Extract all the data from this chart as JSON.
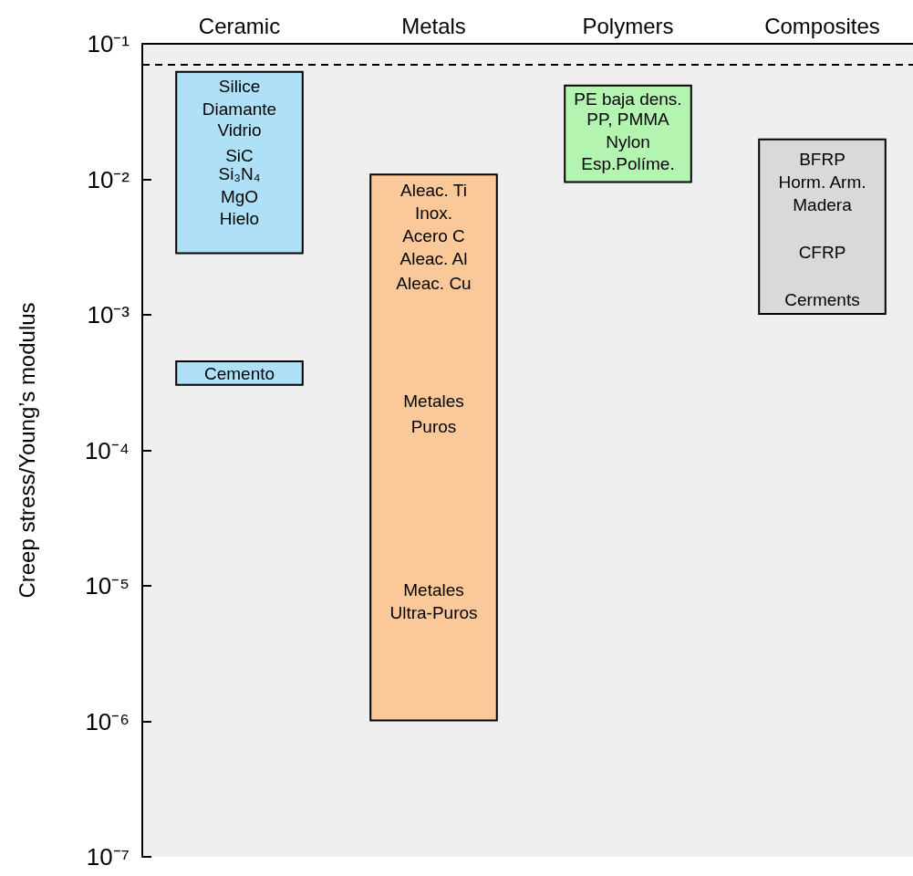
{
  "chart_data": {
    "type": "bar",
    "ylabel": "Creep stress/Young’s modulus",
    "categories": [
      "Ceramic",
      "Metals",
      "Polymers",
      "Composites"
    ],
    "log": "y",
    "ylim": [
      1e-07,
      0.1
    ],
    "yticks": [
      {
        "value": 1e-07,
        "label": "10⁻⁷"
      },
      {
        "value": 1e-06,
        "label": "10⁻⁶"
      },
      {
        "value": 1e-05,
        "label": "10⁻⁵"
      },
      {
        "value": 0.0001,
        "label": "10⁻⁴"
      },
      {
        "value": 0.001,
        "label": "10⁻³"
      },
      {
        "value": 0.01,
        "label": "10⁻²"
      },
      {
        "value": 0.1,
        "label": "10⁻¹"
      }
    ],
    "series": [
      {
        "colors": [
          "#aee0f7",
          "#fbc89a",
          "#b3f5b0",
          "#d9d9d9"
        ],
        "base": [
          0.0028,
          1e-06,
          0.0094,
          0.001
        ],
        "values": [
          0.0602,
          0.010999,
          0.0406,
          0.019
        ]
      },
      {
        "color": "#aee0f7",
        "base": [
          0.0003,
          null,
          null,
          null
        ],
        "values": [
          0.00016,
          null,
          null,
          null
        ]
      }
    ],
    "ref_lines": [
      {
        "axis": "y",
        "value": 0.07,
        "color": "#000000",
        "line_style": "dashed"
      }
    ],
    "annotations": [
      "Silice",
      "Diamante",
      "Vidrio",
      "SiC",
      "Si₃N₄",
      "MgO",
      "Hielo",
      "Cemento",
      "Aleac. Ti",
      "Inox.",
      "Acero C",
      "Aleac. Al",
      "Aleac. Cu",
      "Metales",
      "Puros",
      "Metales",
      "Ultra-Puros",
      "PE baja dens.",
      "PP, PMMA",
      "Nylon",
      "Esp.Políme.",
      "BFRP",
      "Horm. Arm.",
      "Madera",
      "CFRP",
      "Cerments"
    ]
  }
}
